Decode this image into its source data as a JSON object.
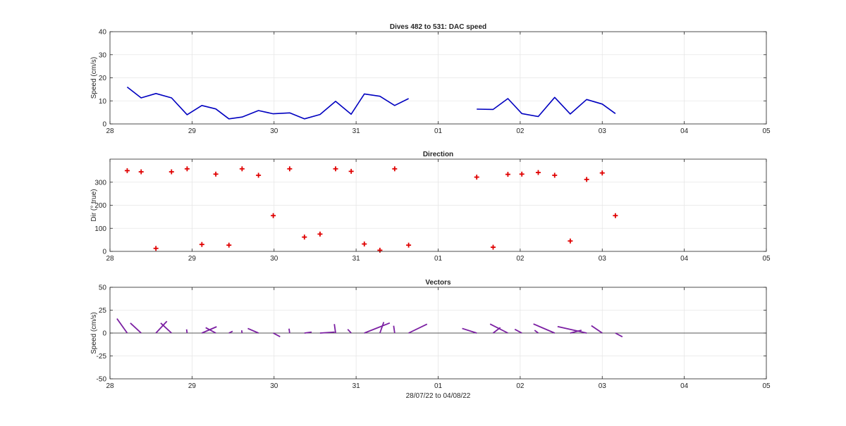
{
  "colors": {
    "speed_line": "#0000C0",
    "direction_marker": "#E00000",
    "vector_stick": "#7B1FA2",
    "grid": "#E6E6E6",
    "axis": "#262626"
  },
  "chart_data": [
    {
      "type": "line",
      "title": "Dives 482 to 531: DAC speed",
      "xlabel": "",
      "ylabel": "Speed (cm/s)",
      "xlim": [
        28,
        36
      ],
      "ylim": [
        0,
        40
      ],
      "xtick_labels": [
        "28",
        "29",
        "30",
        "31",
        "01",
        "02",
        "03",
        "04",
        "05"
      ],
      "yticks": [
        0,
        10,
        20,
        30,
        40
      ],
      "ytick_labels": [
        "0",
        "10",
        "20",
        "30",
        "40"
      ],
      "grid": true,
      "series": [
        {
          "segments": [
            {
              "x": [
                28.21,
                28.38,
                28.56,
                28.75,
                28.94,
                29.12,
                29.29,
                29.45,
                29.61,
                29.81,
                29.99,
                30.19,
                30.37,
                30.56,
                30.75,
                30.94,
                31.1,
                31.29,
                31.47,
                31.64
              ],
              "y": [
                16,
                11.3,
                13.2,
                11.3,
                4,
                8,
                6.5,
                2.2,
                3,
                5.8,
                4.4,
                4.8,
                2.2,
                4.1,
                9.8,
                4.2,
                13,
                12,
                8,
                11
              ]
            },
            {
              "x": [
                32.47,
                32.67,
                32.85,
                33.02,
                33.22,
                33.42,
                33.61,
                33.81,
                34.0,
                34.16
              ],
              "y": [
                6.4,
                6.3,
                11,
                4.5,
                3.2,
                11.5,
                4.3,
                10.6,
                8.6,
                4.5
              ]
            }
          ]
        }
      ]
    },
    {
      "type": "scatter",
      "title": "Direction",
      "xlabel": "",
      "ylabel": "Dir (° true)",
      "xlim": [
        28,
        36
      ],
      "ylim": [
        0,
        400
      ],
      "xtick_labels": [
        "28",
        "29",
        "30",
        "31",
        "01",
        "02",
        "03",
        "04",
        "05"
      ],
      "yticks": [
        0,
        100,
        200,
        300
      ],
      "ytick_labels": [
        "0",
        "100",
        "200",
        "300"
      ],
      "grid": true,
      "series": [
        {
          "x": [
            28.21,
            28.38,
            28.56,
            28.75,
            28.94,
            29.12,
            29.29,
            29.45,
            29.61,
            29.81,
            29.99,
            30.19,
            30.37,
            30.56,
            30.75,
            30.94,
            31.1,
            31.29,
            31.47,
            31.64,
            32.47,
            32.67,
            32.85,
            33.02,
            33.22,
            33.42,
            33.61,
            33.81,
            34.0,
            34.16
          ],
          "y": [
            350,
            345,
            13,
            345,
            358,
            30,
            335,
            27,
            358,
            330,
            155,
            358,
            62,
            75,
            358,
            347,
            32,
            5,
            358,
            27,
            322,
            18,
            334,
            335,
            342,
            330,
            45,
            312,
            340,
            155
          ]
        }
      ]
    },
    {
      "type": "vector",
      "title": "Vectors",
      "xlabel": "28/07/22 to 04/08/22",
      "ylabel": "Speed (cm/s)",
      "xlim": [
        28,
        36
      ],
      "ylim": [
        -50,
        50
      ],
      "xtick_labels": [
        "28",
        "29",
        "30",
        "31",
        "01",
        "02",
        "03",
        "04",
        "05"
      ],
      "yticks": [
        -50,
        -25,
        0,
        25,
        50
      ],
      "ytick_labels": [
        "-50",
        "-25",
        "0",
        "25",
        "50"
      ],
      "grid": true,
      "zero_line": true,
      "series": [
        {
          "x": [
            28.21,
            28.38,
            28.56,
            28.75,
            28.94,
            29.12,
            29.29,
            29.45,
            29.61,
            29.81,
            29.99,
            30.19,
            30.37,
            30.56,
            30.75,
            30.94,
            31.1,
            31.29,
            31.47,
            31.64,
            32.47,
            32.67,
            32.85,
            33.02,
            33.22,
            33.42,
            33.61,
            33.81,
            34.0,
            34.16
          ],
          "speed": [
            16,
            11.3,
            13.2,
            11.3,
            4,
            8,
            6.5,
            2.2,
            3,
            5.8,
            4.4,
            4.8,
            2.2,
            4.1,
            9.8,
            4.2,
            13,
            12,
            8,
            11,
            6.4,
            6.3,
            11,
            4.5,
            3.2,
            11.5,
            4.3,
            10.6,
            8.6,
            4.5
          ],
          "direction": [
            350,
            345,
            13,
            345,
            358,
            30,
            335,
            27,
            358,
            330,
            155,
            358,
            62,
            75,
            358,
            347,
            32,
            5,
            358,
            27,
            322,
            18,
            334,
            335,
            342,
            330,
            45,
            312,
            340,
            155
          ]
        }
      ]
    }
  ]
}
